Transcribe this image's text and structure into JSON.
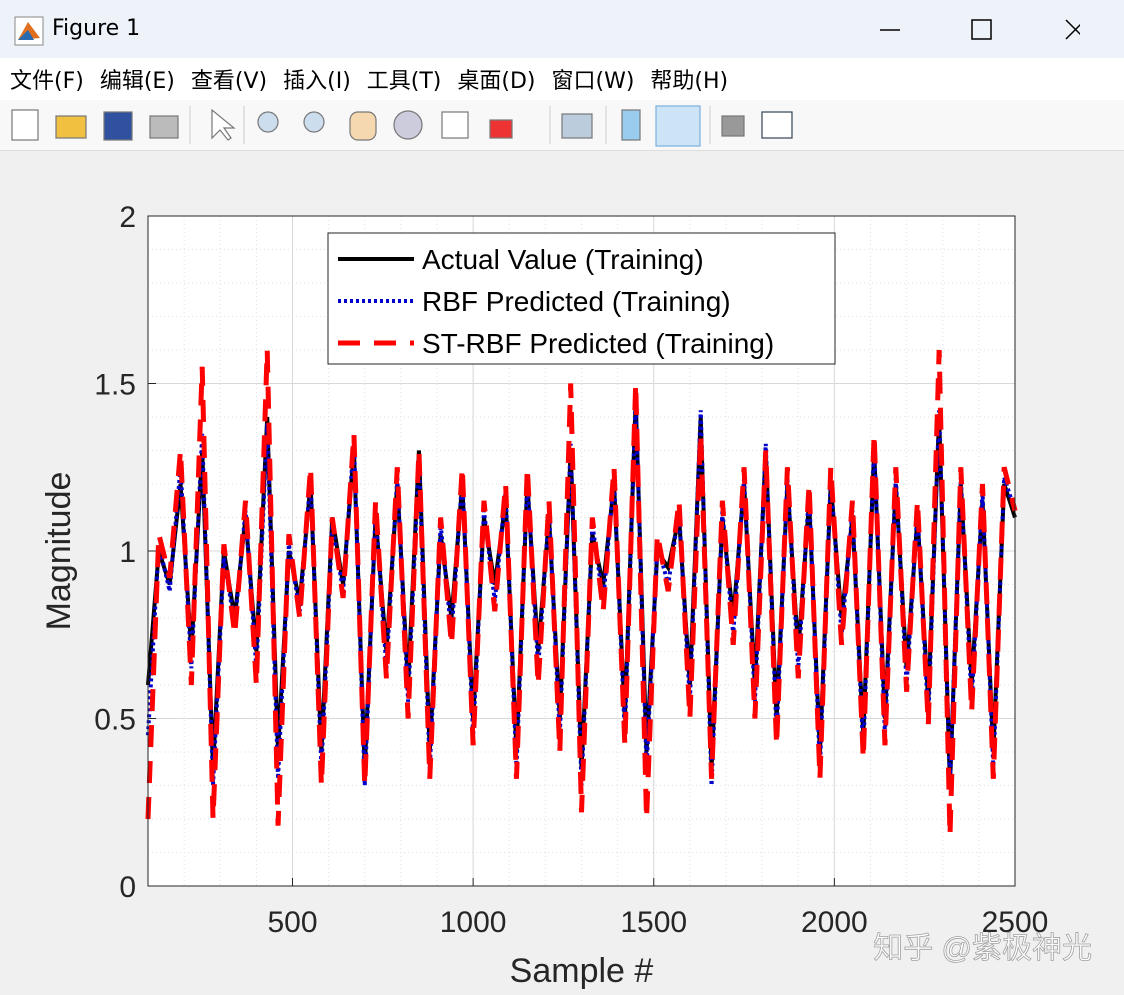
{
  "window": {
    "title": "Figure 1",
    "menu": [
      "文件(F)",
      "编辑(E)",
      "查看(V)",
      "插入(I)",
      "工具(T)",
      "桌面(D)",
      "窗口(W)",
      "帮助(H)"
    ]
  },
  "watermark": "知乎 @紫极神光",
  "chart_data": {
    "type": "line",
    "xlabel": "Sample #",
    "ylabel": "Magnitude",
    "x": [
      100,
      130,
      160,
      190,
      220,
      250,
      280,
      310,
      340,
      370,
      400,
      430,
      460,
      490,
      520,
      550,
      580,
      610,
      640,
      670,
      700,
      730,
      760,
      790,
      820,
      850,
      880,
      910,
      940,
      970,
      1000,
      1030,
      1060,
      1090,
      1120,
      1150,
      1180,
      1210,
      1240,
      1270,
      1300,
      1330,
      1360,
      1390,
      1420,
      1450,
      1480,
      1510,
      1540,
      1570,
      1600,
      1630,
      1660,
      1690,
      1720,
      1750,
      1780,
      1810,
      1840,
      1870,
      1900,
      1930,
      1960,
      1990,
      2020,
      2050,
      2080,
      2110,
      2140,
      2170,
      2200,
      2230,
      2260,
      2290,
      2320,
      2350,
      2380,
      2410,
      2440,
      2470,
      2500
    ],
    "series": [
      {
        "name": "Actual Value (Training)",
        "color": "#000000",
        "style": "solid",
        "values": [
          0.6,
          1.0,
          0.9,
          1.2,
          0.7,
          1.3,
          0.35,
          1.0,
          0.8,
          1.1,
          0.7,
          1.4,
          0.4,
          1.0,
          0.85,
          1.2,
          0.4,
          1.1,
          0.9,
          1.3,
          0.35,
          1.1,
          0.7,
          1.2,
          0.6,
          1.3,
          0.4,
          1.05,
          0.8,
          1.2,
          0.5,
          1.1,
          0.9,
          1.15,
          0.4,
          1.2,
          0.7,
          1.1,
          0.5,
          1.3,
          0.35,
          1.05,
          0.9,
          1.2,
          0.5,
          1.45,
          0.4,
          1.0,
          0.95,
          1.1,
          0.6,
          1.4,
          0.35,
          1.1,
          0.8,
          1.2,
          0.6,
          1.3,
          0.5,
          1.2,
          0.7,
          1.15,
          0.4,
          1.2,
          0.8,
          1.1,
          0.45,
          1.3,
          0.5,
          1.2,
          0.65,
          1.1,
          0.55,
          1.4,
          0.3,
          1.2,
          0.6,
          1.15,
          0.4,
          1.2,
          1.1
        ]
      },
      {
        "name": "RBF Predicted (Training)",
        "color": "#0000cc",
        "style": "dotted",
        "values": [
          0.45,
          1.02,
          0.88,
          1.25,
          0.65,
          1.35,
          0.3,
          0.98,
          0.78,
          1.12,
          0.65,
          1.38,
          0.32,
          1.02,
          0.82,
          1.22,
          0.35,
          1.08,
          0.88,
          1.33,
          0.3,
          1.12,
          0.65,
          1.22,
          0.55,
          1.28,
          0.35,
          1.08,
          0.75,
          1.22,
          0.45,
          1.12,
          0.85,
          1.18,
          0.35,
          1.22,
          0.65,
          1.12,
          0.45,
          1.32,
          0.3,
          1.08,
          0.85,
          1.22,
          0.45,
          1.46,
          0.35,
          1.02,
          0.9,
          1.12,
          0.55,
          1.42,
          0.3,
          1.12,
          0.75,
          1.22,
          0.55,
          1.32,
          0.45,
          1.22,
          0.65,
          1.18,
          0.35,
          1.22,
          0.75,
          1.12,
          0.4,
          1.32,
          0.45,
          1.22,
          0.6,
          1.12,
          0.5,
          1.42,
          0.3,
          1.22,
          0.55,
          1.18,
          0.35,
          1.22,
          1.12
        ]
      },
      {
        "name": "ST-RBF Predicted (Training)",
        "color": "#ff0000",
        "style": "dashed",
        "values": [
          0.2,
          1.05,
          0.92,
          1.3,
          0.6,
          1.55,
          0.2,
          1.02,
          0.75,
          1.15,
          0.6,
          1.6,
          0.18,
          1.05,
          0.8,
          1.25,
          0.3,
          1.1,
          0.86,
          1.35,
          0.3,
          1.15,
          0.62,
          1.25,
          0.5,
          1.3,
          0.32,
          1.1,
          0.72,
          1.25,
          0.42,
          1.15,
          0.82,
          1.2,
          0.32,
          1.25,
          0.6,
          1.15,
          0.4,
          1.5,
          0.22,
          1.1,
          0.82,
          1.25,
          0.42,
          1.5,
          0.2,
          1.05,
          0.88,
          1.15,
          0.5,
          1.35,
          0.32,
          1.15,
          0.72,
          1.25,
          0.5,
          1.3,
          0.42,
          1.25,
          0.62,
          1.2,
          0.32,
          1.25,
          0.72,
          1.15,
          0.38,
          1.35,
          0.42,
          1.25,
          0.58,
          1.15,
          0.48,
          1.6,
          0.15,
          1.25,
          0.52,
          1.2,
          0.32,
          1.25,
          1.12
        ]
      }
    ],
    "xlim": [
      100,
      2500
    ],
    "xticks": [
      500,
      1000,
      1500,
      2000,
      2500
    ],
    "ylim": [
      0,
      2
    ],
    "yticks": [
      0,
      0.5,
      1,
      1.5,
      2
    ],
    "grid": true,
    "minor_grid": true,
    "legend": "north"
  }
}
